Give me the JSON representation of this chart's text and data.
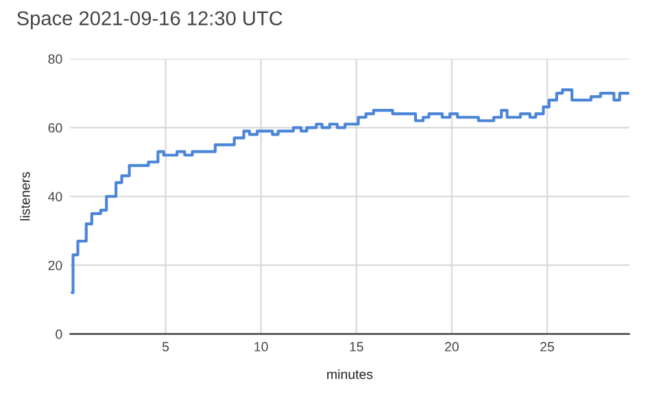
{
  "chart_data": {
    "type": "step",
    "title": "Space 2021-09-16 12:30 UTC",
    "xlabel": "minutes",
    "ylabel": "listeners",
    "x": [
      0.1,
      0.15,
      0.4,
      0.84,
      1.13,
      1.6,
      1.9,
      2.4,
      2.7,
      3.1,
      4.1,
      4.6,
      4.9,
      5.6,
      6.0,
      6.4,
      7.6,
      8.6,
      9.1,
      9.4,
      9.8,
      10.6,
      10.9,
      11.7,
      12.1,
      12.4,
      12.9,
      13.2,
      13.6,
      14.0,
      14.4,
      15.1,
      15.5,
      15.9,
      16.9,
      18.1,
      18.5,
      18.8,
      19.5,
      19.9,
      20.3,
      21.4,
      22.2,
      22.6,
      22.9,
      23.6,
      24.1,
      24.4,
      24.8,
      25.1,
      25.5,
      25.8,
      26.3,
      27.3,
      27.8,
      28.5,
      28.8,
      29.3
    ],
    "series": [
      {
        "color": "#4a85d8",
        "values": [
          12,
          23,
          27,
          32,
          35,
          36,
          40,
          44,
          46,
          49,
          50,
          53,
          52,
          53,
          52,
          53,
          55,
          57,
          59,
          58,
          59,
          58,
          59,
          60,
          59,
          60,
          61,
          60,
          61,
          60,
          61,
          63,
          64,
          65,
          64,
          62,
          63,
          64,
          63,
          64,
          63,
          62,
          63,
          65,
          63,
          64,
          63,
          64,
          66,
          68,
          70,
          71,
          68,
          69,
          70,
          68,
          70,
          70
        ]
      }
    ],
    "xlim": [
      0,
      29.3
    ],
    "ylim": [
      0,
      80
    ],
    "xticks": [
      5,
      10,
      15,
      20,
      25
    ],
    "yticks": [
      0,
      20,
      40,
      60,
      80
    ],
    "grid": true,
    "legend": false
  }
}
